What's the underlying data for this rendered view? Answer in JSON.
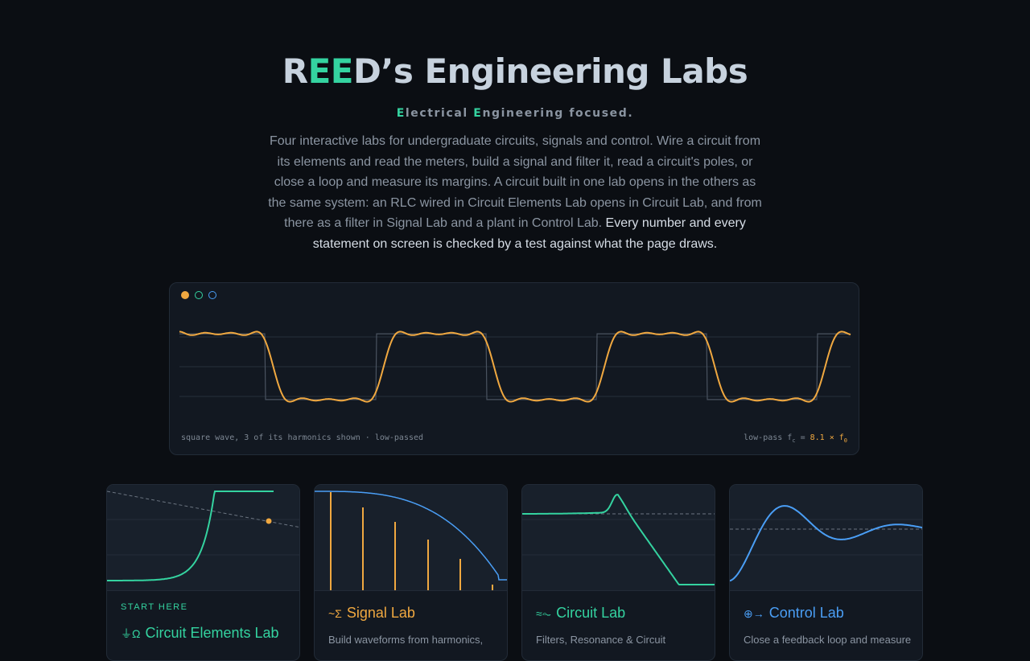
{
  "header": {
    "title_prefix": "R",
    "title_highlight": "EE",
    "title_suffix": "D’s Engineering Labs",
    "tagline_e1": "E",
    "tagline_part1": "lectrical ",
    "tagline_e2": "E",
    "tagline_part2": "ngineering focused."
  },
  "intro": {
    "body": "Four interactive labs for undergraduate circuits, signals and control. Wire a circuit from its elements and read the meters, build a signal and filter it, read a circuit's poles, or close a loop and measure its margins. A circuit built in one lab opens in the others as the same system: an RLC wired in Circuit Elements Lab opens in Circuit Lab, and from there as a filter in Signal Lab and a plant in Control Lab. ",
    "emphasis": "Every number and every statement on screen is checked by a test against what the page draws."
  },
  "hero": {
    "caption_left": "square wave, 3 of its harmonics shown · low-passed",
    "caption_right_prefix": "low-pass f",
    "caption_right_sub": "c",
    "caption_right_eq": " = ",
    "caption_right_value": "8.1 × f",
    "caption_right_value_sub": "0",
    "waveform": {
      "type": "square wave (input) and its low-passed output",
      "harmonics_shown": 3,
      "cutoff_ratio": 8.1,
      "periods_shown": 3
    }
  },
  "cards": [
    {
      "kicker": "START HERE",
      "icon": "ground-ohm-icon",
      "icon_glyph": "⏚Ω",
      "title": "Circuit Elements Lab",
      "desc": "",
      "color": "#34d3a0"
    },
    {
      "kicker": "",
      "icon": "wave-sum-icon",
      "icon_glyph": "~Σ",
      "title": "Signal Lab",
      "desc": "Build waveforms from harmonics,",
      "color": "#f0a840"
    },
    {
      "kicker": "",
      "icon": "filter-wave-icon",
      "icon_glyph": "≈⏦",
      "title": "Circuit Lab",
      "desc": "Filters, Resonance & Circuit",
      "color": "#34d3a0"
    },
    {
      "kicker": "",
      "icon": "sum-arrow-icon",
      "icon_glyph": "⊕→",
      "title": "Control Lab",
      "desc": "Close a feedback loop and measure",
      "color": "#4a9ef5"
    }
  ],
  "colors": {
    "background": "#0b0e13",
    "accent_teal": "#34d3a0",
    "accent_orange": "#f0a840",
    "accent_blue": "#4a9ef5"
  }
}
